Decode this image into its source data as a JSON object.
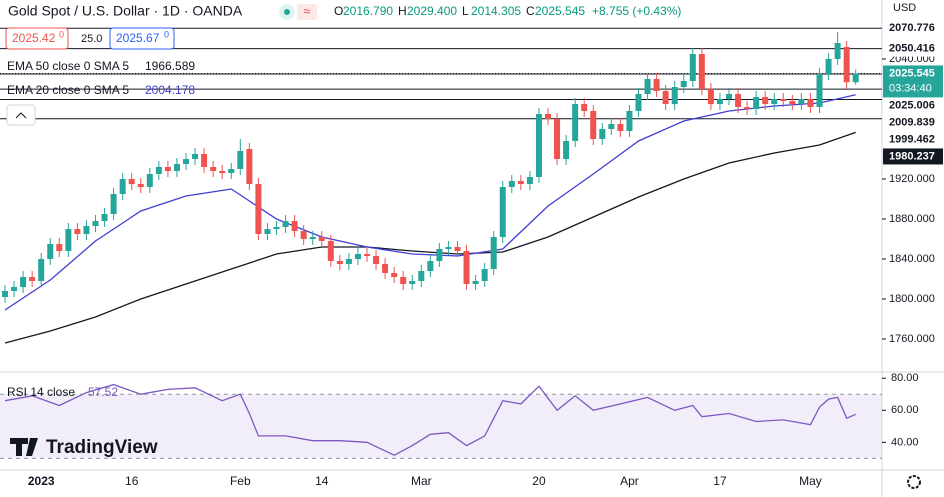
{
  "header": {
    "title": "Gold Spot / U.S. Dollar · 1D · OANDA",
    "ohlc": [
      {
        "k": "O",
        "v": "2016.790"
      },
      {
        "k": "H",
        "v": "2029.400"
      },
      {
        "k": "L",
        "v": "2014.305"
      },
      {
        "k": "C",
        "v": "2025.545"
      }
    ],
    "change": "+8.755 (+0.43%)",
    "bid": "2025.42",
    "bid_sup": "0",
    "spread": "25.0",
    "ask": "2025.67",
    "ask_sup": "0",
    "currency": "USD",
    "logo": "TradingView"
  },
  "chart_data": {
    "type": "candlestick",
    "categories": [
      null,
      null,
      null,
      null,
      "2023",
      null,
      null,
      null,
      null,
      null,
      null,
      null,
      null,
      null,
      "16",
      null,
      null,
      null,
      null,
      null,
      null,
      null,
      null,
      null,
      null,
      null,
      "Feb",
      null,
      null,
      null,
      null,
      null,
      null,
      null,
      null,
      "14",
      null,
      null,
      null,
      null,
      null,
      null,
      null,
      null,
      null,
      null,
      "Mar",
      null,
      null,
      null,
      null,
      null,
      null,
      null,
      null,
      null,
      null,
      null,
      null,
      "20",
      null,
      null,
      null,
      null,
      null,
      null,
      null,
      null,
      null,
      "Apr",
      null,
      null,
      null,
      null,
      null,
      null,
      null,
      null,
      null,
      "17",
      null,
      null,
      null,
      null,
      null,
      null,
      null,
      null,
      null,
      "May",
      null,
      null,
      null,
      null,
      null
    ],
    "open": [
      1802,
      1808,
      1812,
      1822,
      1818,
      1840,
      1855,
      1848,
      1870,
      1865,
      1873,
      1878,
      1885,
      1905,
      1920,
      1915,
      1912,
      1925,
      1932,
      1928,
      1935,
      1940,
      1945,
      1932,
      1928,
      1926,
      1930,
      1950,
      1915,
      1865,
      1870,
      1872,
      1878,
      1868,
      1860,
      1862,
      1858,
      1838,
      1835,
      1840,
      1845,
      1843,
      1835,
      1826,
      1822,
      1815,
      1818,
      1828,
      1838,
      1850,
      1852,
      1848,
      1815,
      1818,
      1830,
      1862,
      1912,
      1918,
      1915,
      1922,
      1985,
      1980,
      1940,
      1958,
      1995,
      1988,
      1960,
      1970,
      1975,
      1968,
      1988,
      2005,
      2020,
      2008,
      1995,
      2012,
      2018,
      2045,
      2010,
      1995,
      2000,
      2005,
      1992,
      1990,
      2002,
      1995,
      2000,
      1998,
      1995,
      2000,
      1992,
      2025,
      2040,
      2052,
      2016.79
    ],
    "high": [
      1814,
      1818,
      1828,
      1828,
      1846,
      1861,
      1861,
      1876,
      1876,
      1879,
      1884,
      1891,
      1911,
      1926,
      1926,
      1921,
      1931,
      1938,
      1938,
      1941,
      1946,
      1951,
      1951,
      1938,
      1934,
      1936,
      1960,
      1956,
      1921,
      1876,
      1878,
      1884,
      1884,
      1874,
      1868,
      1868,
      1864,
      1844,
      1846,
      1851,
      1851,
      1849,
      1841,
      1832,
      1828,
      1824,
      1834,
      1844,
      1856,
      1858,
      1858,
      1854,
      1824,
      1836,
      1868,
      1918,
      1924,
      1924,
      1928,
      1991,
      1991,
      1986,
      1964,
      2001,
      2001,
      1994,
      1976,
      1981,
      1981,
      1994,
      2011,
      2026,
      2026,
      2014,
      2018,
      2024,
      2051,
      2051,
      2016,
      2006,
      2011,
      2011,
      1998,
      2008,
      2008,
      2006,
      2006,
      2004,
      2006,
      2006,
      2031,
      2046,
      2067,
      2058,
      2029.4
    ],
    "low": [
      1796,
      1802,
      1806,
      1812,
      1812,
      1834,
      1842,
      1842,
      1859,
      1859,
      1867,
      1872,
      1879,
      1899,
      1909,
      1906,
      1906,
      1919,
      1922,
      1922,
      1929,
      1934,
      1926,
      1922,
      1920,
      1920,
      1924,
      1909,
      1859,
      1859,
      1864,
      1866,
      1862,
      1854,
      1854,
      1852,
      1832,
      1829,
      1829,
      1834,
      1837,
      1829,
      1820,
      1816,
      1809,
      1809,
      1812,
      1822,
      1832,
      1844,
      1842,
      1809,
      1809,
      1812,
      1824,
      1856,
      1906,
      1909,
      1909,
      1916,
      1974,
      1934,
      1934,
      1952,
      1982,
      1954,
      1954,
      1964,
      1962,
      1962,
      1982,
      1999,
      2002,
      1989,
      1989,
      2006,
      2012,
      2004,
      1989,
      1989,
      1994,
      1986,
      1984,
      1984,
      1989,
      1989,
      1992,
      1989,
      1989,
      1986,
      1986,
      2019,
      2034,
      2010,
      2014.305
    ],
    "close": [
      1808,
      1812,
      1822,
      1818,
      1840,
      1855,
      1848,
      1870,
      1865,
      1873,
      1878,
      1885,
      1905,
      1920,
      1915,
      1912,
      1925,
      1932,
      1928,
      1935,
      1940,
      1945,
      1932,
      1928,
      1926,
      1930,
      1948,
      1915,
      1865,
      1870,
      1872,
      1878,
      1868,
      1860,
      1862,
      1858,
      1838,
      1835,
      1840,
      1845,
      1843,
      1835,
      1826,
      1822,
      1815,
      1818,
      1828,
      1838,
      1850,
      1852,
      1848,
      1815,
      1818,
      1830,
      1862,
      1912,
      1918,
      1915,
      1922,
      1985,
      1980,
      1940,
      1958,
      1995,
      1988,
      1960,
      1970,
      1975,
      1968,
      1988,
      2005,
      2020,
      2008,
      1995,
      2012,
      2018,
      2045,
      2010,
      1995,
      2000,
      2005,
      1992,
      1990,
      2002,
      1995,
      2000,
      1998,
      1995,
      2000,
      1992,
      2025,
      2040,
      2056,
      2016.79,
      2025.545
    ],
    "up_color": "#26a69a",
    "down_color": "#ef5350",
    "ylim": [
      1727,
      2099
    ],
    "yticks": [
      {
        "value": 1760,
        "label": "1760.000"
      },
      {
        "value": 1800,
        "label": "1800.000"
      },
      {
        "value": 1840,
        "label": "1840.000"
      },
      {
        "value": 1880,
        "label": "1880.000"
      },
      {
        "value": 1920,
        "label": "1920.000"
      },
      {
        "value": 2040,
        "label": "2040.000"
      }
    ],
    "countdown": "03:34:40",
    "levels": [
      2070.776,
      2050.416,
      2025.006,
      2009.839,
      1999.462,
      1980.237
    ],
    "lines": [
      {
        "name": "EMA 50 close 0 SMA 5",
        "color": "#131722",
        "x": [
          0,
          5,
          10,
          15,
          20,
          25,
          30,
          35,
          40,
          45,
          50,
          55,
          60,
          65,
          70,
          75,
          80,
          85,
          90,
          94
        ],
        "values": [
          1756,
          1768,
          1782,
          1800,
          1815,
          1830,
          1845,
          1852,
          1852,
          1848,
          1845,
          1847,
          1862,
          1882,
          1902,
          1920,
          1936,
          1946,
          1954,
          1966.589
        ]
      },
      {
        "name": "EMA 20 close 0 SMA 5",
        "color": "#3f3fd6",
        "x": [
          0,
          5,
          10,
          15,
          20,
          25,
          30,
          35,
          40,
          45,
          50,
          55,
          60,
          65,
          70,
          75,
          80,
          85,
          90,
          94
        ],
        "values": [
          1789,
          1819,
          1858,
          1888,
          1903,
          1910,
          1880,
          1862,
          1852,
          1845,
          1843,
          1850,
          1893,
          1925,
          1958,
          1978,
          1988,
          1993,
          1996,
          2004.178
        ]
      }
    ],
    "rsi": {
      "name": "RSI 14 close",
      "color": "#7e57c2",
      "band": [
        30,
        70
      ],
      "ylim": [
        24,
        82
      ],
      "yticks": [
        {
          "value": 80,
          "label": "80.00"
        },
        {
          "value": 60,
          "label": "60.00"
        },
        {
          "value": 40,
          "label": "40.00"
        }
      ],
      "x": [
        0,
        3,
        6,
        9,
        12,
        15,
        18,
        21,
        24,
        26,
        27,
        28,
        31,
        34,
        37,
        40,
        43,
        45,
        47,
        49,
        51,
        53,
        55,
        57,
        59,
        61,
        63,
        65,
        68,
        71,
        74,
        76,
        77,
        80,
        83,
        86,
        89,
        90,
        91,
        92,
        93,
        94
      ],
      "values": [
        66,
        69,
        63,
        71,
        76,
        70,
        73,
        74,
        66,
        70,
        58,
        44,
        44,
        41,
        41,
        40,
        32,
        38,
        45,
        46,
        38,
        44,
        66,
        64,
        75,
        60,
        69,
        60,
        64,
        68,
        60,
        63,
        56,
        58,
        53,
        54,
        51,
        62,
        67,
        68,
        55,
        57.52
      ]
    }
  }
}
